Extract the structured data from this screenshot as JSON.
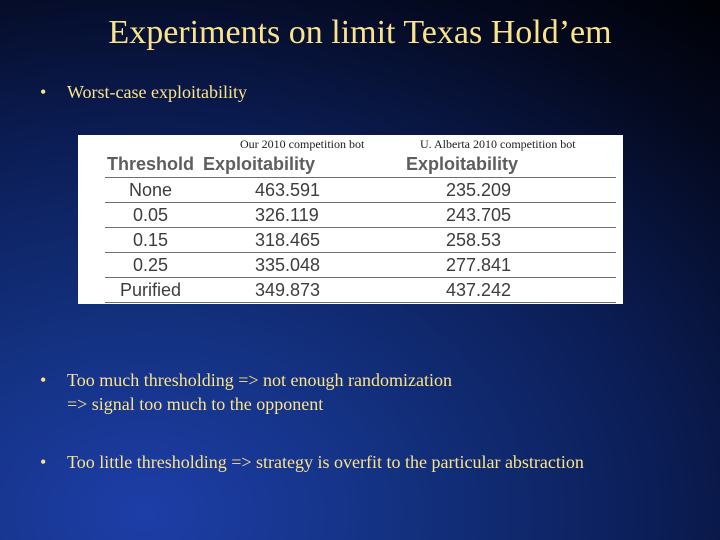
{
  "title": "Experiments on limit Texas Hold’em",
  "bullets": [
    {
      "marker": "•",
      "lines": [
        "Worst-case exploitability"
      ]
    },
    {
      "marker": "•",
      "lines": [
        "Too much thresholding => not enough randomization",
        "=> signal too much to the opponent"
      ]
    },
    {
      "marker": "•",
      "lines": [
        "Too little thresholding => strategy is overfit to the particular abstraction"
      ]
    }
  ],
  "table": {
    "captions": [
      "Our 2010 competition bot",
      "U. Alberta 2010 competition bot"
    ],
    "headers": [
      "Threshold",
      "Exploitability",
      "Exploitability"
    ],
    "rows": [
      [
        "None",
        "463.591",
        "235.209"
      ],
      [
        "0.05",
        "326.119",
        "243.705"
      ],
      [
        "0.15",
        "318.465",
        "258.53"
      ],
      [
        "0.25",
        "335.048",
        "277.841"
      ],
      [
        "Purified",
        "349.873",
        "437.242"
      ]
    ]
  },
  "colors": {
    "text": "#fbe38c",
    "background": "#0b1d55"
  }
}
